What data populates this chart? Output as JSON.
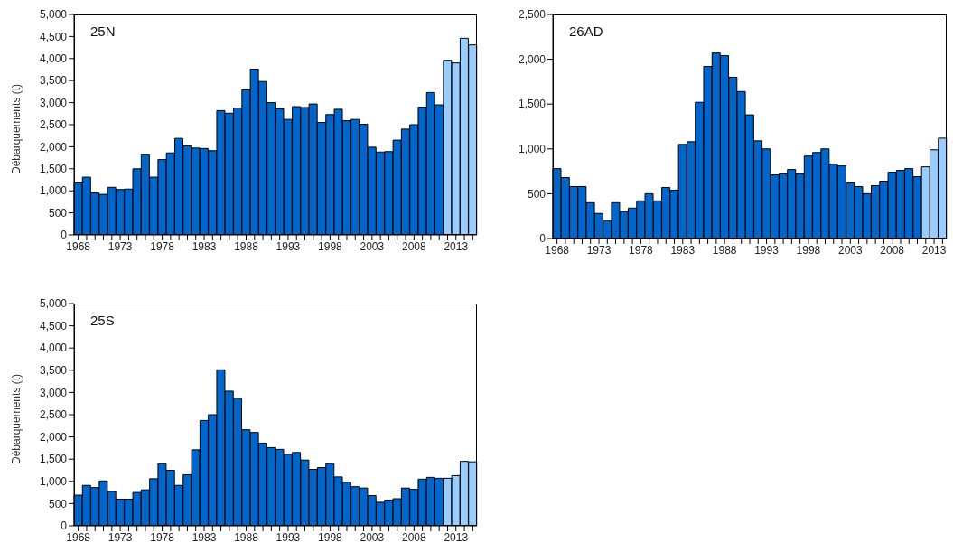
{
  "chart_data": [
    {
      "type": "bar",
      "title": "25N",
      "ylabel": "Débarquements (t)",
      "categories": [
        "1968",
        null,
        null,
        null,
        null,
        "1973",
        null,
        null,
        null,
        null,
        "1978",
        null,
        null,
        null,
        null,
        "1983",
        null,
        null,
        null,
        null,
        "1988",
        null,
        null,
        null,
        null,
        "1993",
        null,
        null,
        null,
        null,
        "1998",
        null,
        null,
        null,
        null,
        "2003",
        null,
        null,
        null,
        null,
        "2008",
        null,
        null,
        null,
        null,
        "2013",
        null,
        null
      ],
      "values": [
        1180,
        1310,
        950,
        920,
        1080,
        1030,
        1040,
        1500,
        1820,
        1310,
        1710,
        1860,
        2190,
        2020,
        1970,
        1960,
        1910,
        2820,
        2760,
        2880,
        3290,
        3760,
        3480,
        3000,
        2860,
        2620,
        2910,
        2890,
        2970,
        2550,
        2730,
        2850,
        2590,
        2620,
        2510,
        1990,
        1880,
        1890,
        2150,
        2400,
        2500,
        2900,
        3230,
        2950,
        3960,
        3900,
        4460,
        4310
      ],
      "colors": [
        "#0066cc",
        "#0066cc",
        "#0066cc",
        "#0066cc",
        "#0066cc",
        "#0066cc",
        "#0066cc",
        "#0066cc",
        "#0066cc",
        "#0066cc",
        "#0066cc",
        "#0066cc",
        "#0066cc",
        "#0066cc",
        "#0066cc",
        "#0066cc",
        "#0066cc",
        "#0066cc",
        "#0066cc",
        "#0066cc",
        "#0066cc",
        "#0066cc",
        "#0066cc",
        "#0066cc",
        "#0066cc",
        "#0066cc",
        "#0066cc",
        "#0066cc",
        "#0066cc",
        "#0066cc",
        "#0066cc",
        "#0066cc",
        "#0066cc",
        "#0066cc",
        "#0066cc",
        "#0066cc",
        "#0066cc",
        "#0066cc",
        "#0066cc",
        "#0066cc",
        "#0066cc",
        "#0066cc",
        "#0066cc",
        "#0066cc",
        "#99ccff",
        "#99ccff",
        "#99ccff",
        "#99ccff"
      ],
      "ylim": [
        0,
        5000
      ],
      "yticks": [
        0,
        {
          "value": 500,
          "label": "500"
        },
        {
          "value": 1000,
          "label": "1,000"
        },
        {
          "value": 1500,
          "label": "1,500"
        },
        {
          "value": 2000,
          "label": "2,000"
        },
        {
          "value": 2500,
          "label": "2,500"
        },
        {
          "value": 3000,
          "label": "3,000"
        },
        {
          "value": 3500,
          "label": "3,500"
        },
        {
          "value": 4000,
          "label": "4,000"
        },
        {
          "value": 4500,
          "label": "4,500"
        },
        {
          "value": 5000,
          "label": "5,000"
        }
      ],
      "grid": false
    },
    {
      "type": "bar",
      "title": "26AD",
      "categories": [
        "1968",
        null,
        null,
        null,
        null,
        "1973",
        null,
        null,
        null,
        null,
        "1978",
        null,
        null,
        null,
        null,
        "1983",
        null,
        null,
        null,
        null,
        "1988",
        null,
        null,
        null,
        null,
        "1993",
        null,
        null,
        null,
        null,
        "1998",
        null,
        null,
        null,
        null,
        "2003",
        null,
        null,
        null,
        null,
        "2008",
        null,
        null,
        null,
        null,
        "2013",
        null
      ],
      "values": [
        780,
        680,
        580,
        580,
        400,
        280,
        200,
        400,
        300,
        340,
        420,
        500,
        420,
        570,
        540,
        1050,
        1080,
        1520,
        1920,
        2070,
        2040,
        1800,
        1640,
        1380,
        1090,
        1000,
        710,
        720,
        770,
        720,
        920,
        960,
        1000,
        830,
        810,
        620,
        580,
        500,
        590,
        640,
        740,
        760,
        780,
        690,
        800,
        990,
        1120
      ],
      "colors": [
        "#0066cc",
        "#0066cc",
        "#0066cc",
        "#0066cc",
        "#0066cc",
        "#0066cc",
        "#0066cc",
        "#0066cc",
        "#0066cc",
        "#0066cc",
        "#0066cc",
        "#0066cc",
        "#0066cc",
        "#0066cc",
        "#0066cc",
        "#0066cc",
        "#0066cc",
        "#0066cc",
        "#0066cc",
        "#0066cc",
        "#0066cc",
        "#0066cc",
        "#0066cc",
        "#0066cc",
        "#0066cc",
        "#0066cc",
        "#0066cc",
        "#0066cc",
        "#0066cc",
        "#0066cc",
        "#0066cc",
        "#0066cc",
        "#0066cc",
        "#0066cc",
        "#0066cc",
        "#0066cc",
        "#0066cc",
        "#0066cc",
        "#0066cc",
        "#0066cc",
        "#0066cc",
        "#0066cc",
        "#0066cc",
        "#0066cc",
        "#99ccff",
        "#99ccff",
        "#99ccff"
      ],
      "ylim": [
        0,
        2500
      ],
      "yticks": [
        {
          "value": 0,
          "label": "0"
        },
        {
          "value": 500,
          "label": "500"
        },
        {
          "value": 1000,
          "label": "1,000"
        },
        {
          "value": 1500,
          "label": "1,500"
        },
        {
          "value": 2000,
          "label": "2,000"
        },
        {
          "value": 2500,
          "label": "2,500"
        }
      ],
      "grid": false
    },
    {
      "type": "bar",
      "title": "25S",
      "ylabel": "Débarquements (t)",
      "categories": [
        "1968",
        null,
        null,
        null,
        null,
        "1973",
        null,
        null,
        null,
        null,
        "1978",
        null,
        null,
        null,
        null,
        "1983",
        null,
        null,
        null,
        null,
        "1988",
        null,
        null,
        null,
        null,
        "1993",
        null,
        null,
        null,
        null,
        "1998",
        null,
        null,
        null,
        null,
        "2003",
        null,
        null,
        null,
        null,
        "2008",
        null,
        null,
        null,
        null,
        "2013",
        null,
        null
      ],
      "values": [
        690,
        910,
        860,
        1010,
        770,
        600,
        600,
        750,
        810,
        1060,
        1400,
        1250,
        910,
        1150,
        1710,
        2370,
        2500,
        3510,
        3030,
        2870,
        2160,
        2100,
        1860,
        1760,
        1720,
        1610,
        1650,
        1480,
        1270,
        1310,
        1400,
        1100,
        980,
        880,
        850,
        680,
        530,
        580,
        610,
        850,
        820,
        1050,
        1090,
        1070,
        1070,
        1130,
        1450,
        1440
      ],
      "colors": [
        "#0066cc",
        "#0066cc",
        "#0066cc",
        "#0066cc",
        "#0066cc",
        "#0066cc",
        "#0066cc",
        "#0066cc",
        "#0066cc",
        "#0066cc",
        "#0066cc",
        "#0066cc",
        "#0066cc",
        "#0066cc",
        "#0066cc",
        "#0066cc",
        "#0066cc",
        "#0066cc",
        "#0066cc",
        "#0066cc",
        "#0066cc",
        "#0066cc",
        "#0066cc",
        "#0066cc",
        "#0066cc",
        "#0066cc",
        "#0066cc",
        "#0066cc",
        "#0066cc",
        "#0066cc",
        "#0066cc",
        "#0066cc",
        "#0066cc",
        "#0066cc",
        "#0066cc",
        "#0066cc",
        "#0066cc",
        "#0066cc",
        "#0066cc",
        "#0066cc",
        "#0066cc",
        "#0066cc",
        "#0066cc",
        "#0066cc",
        "#99ccff",
        "#99ccff",
        "#99ccff",
        "#99ccff"
      ],
      "ylim": [
        0,
        5000
      ],
      "yticks": [
        0,
        {
          "value": 500,
          "label": "500"
        },
        {
          "value": 1000,
          "label": "1,000"
        },
        {
          "value": 1500,
          "label": "1,500"
        },
        {
          "value": 2000,
          "label": "2,000"
        },
        {
          "value": 2500,
          "label": "2,500"
        },
        {
          "value": 3000,
          "label": "3,000"
        },
        {
          "value": 3500,
          "label": "3,500"
        },
        {
          "value": 4000,
          "label": "4,000"
        },
        {
          "value": 4500,
          "label": "4,500"
        },
        {
          "value": 5000,
          "label": "5,000"
        }
      ],
      "grid": false
    }
  ]
}
